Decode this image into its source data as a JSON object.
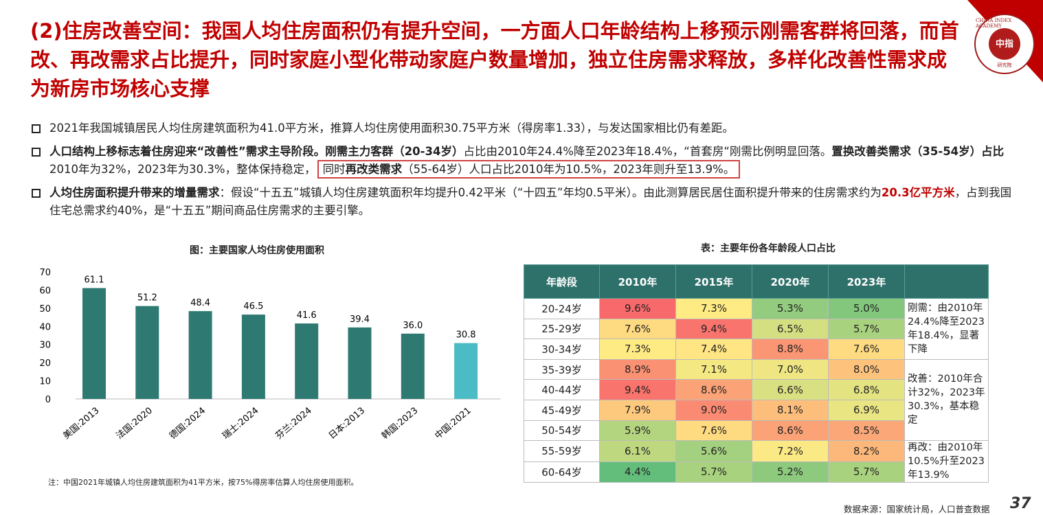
{
  "logo": {
    "ring_text": "CHINA INDEX ACADEMY",
    "center_text": "中指",
    "sub_text": "研究院"
  },
  "title": "(2)住房改善空间：我国人均住房面积仍有提升空间，一方面人口年龄结构上移预示刚需客群将回落，而首改、再改需求占比提升，同时家庭小型化带动家庭户数量增加，独立住房需求释放，多样化改善性需求成为新房市场核心支撑",
  "bullets": [
    {
      "text": "2021年我国城镇居民人均住房建筑面积为41.0平方米，推算人均住房使用面积30.75平方米（得房率1.33），与发达国家相比仍有差距。"
    },
    {
      "b1": "人口结构上移标志着住房迎来“改善性”需求主导阶段。刚需主力客群（20-34岁）",
      "t1": "占比由2010年24.4%降至2023年18.4%，“首套房“刚需比例明显回落。",
      "b2": "置换改善类需求（35-54岁）占比",
      "t2": "2010年为32%，2023年为30.3%，整体保持稳定，",
      "h1": "同时",
      "hb": "再改类需求",
      "h2": "（55-64岁）人口占比2010年为10.5%，2023年则升至13.9%。"
    },
    {
      "b1": "人均住房面积提升带来的增量需求",
      "t1": "：假设“十五五”城镇人均住房建筑面积年均提升0.42平米（“十四五”年均0.5平米）。由此测算居民居住面积提升带来的住房需求约为",
      "r": "20.3亿平方米",
      "t2": "，占到我国住宅总需求约40%，是“十五五”期间商品住房需求的主要引擎。"
    }
  ],
  "chart_data": {
    "type": "bar",
    "title": "图：主要国家人均住房使用面积",
    "categories": [
      "美国:2013",
      "法国:2020",
      "德国:2024",
      "瑞士:2024",
      "芬兰:2024",
      "日本:2013",
      "韩国:2023",
      "中国:2021"
    ],
    "values": [
      61.1,
      51.2,
      48.4,
      46.5,
      41.6,
      39.4,
      36.0,
      30.8
    ],
    "ylim": [
      0,
      70
    ],
    "yticks": [
      0,
      10,
      20,
      30,
      40,
      50,
      60,
      70
    ],
    "colors": {
      "default": "#2e7a72",
      "highlight": "#4bbcc6"
    },
    "highlight_index": 7,
    "grid": false
  },
  "table": {
    "title": "表：主要年份各年龄段人口占比",
    "headers": [
      "年龄段",
      "2010年",
      "2015年",
      "2020年",
      "2023年",
      ""
    ],
    "rows": [
      {
        "age": "20-24岁",
        "v": [
          "9.6%",
          "7.3%",
          "5.3%",
          "5.0%"
        ]
      },
      {
        "age": "25-29岁",
        "v": [
          "7.6%",
          "9.4%",
          "6.5%",
          "5.7%"
        ]
      },
      {
        "age": "30-34岁",
        "v": [
          "7.3%",
          "7.4%",
          "8.8%",
          "7.6%"
        ]
      },
      {
        "age": "35-39岁",
        "v": [
          "8.9%",
          "7.1%",
          "7.0%",
          "8.0%"
        ]
      },
      {
        "age": "40-44岁",
        "v": [
          "9.4%",
          "8.6%",
          "6.6%",
          "6.8%"
        ]
      },
      {
        "age": "45-49岁",
        "v": [
          "7.9%",
          "9.0%",
          "8.1%",
          "6.9%"
        ]
      },
      {
        "age": "50-54岁",
        "v": [
          "5.9%",
          "7.6%",
          "8.6%",
          "8.5%"
        ]
      },
      {
        "age": "55-59岁",
        "v": [
          "6.1%",
          "5.6%",
          "7.2%",
          "8.2%"
        ]
      },
      {
        "age": "60-64岁",
        "v": [
          "4.4%",
          "5.7%",
          "5.2%",
          "5.7%"
        ]
      }
    ],
    "notes": [
      "刚需：由2010年24.4%降至2023年18.4%，显著下降",
      "改善：2010年合计32%，2023年30.3%，基本稳定",
      "再改：由2010年10.5%升至2023年13.9%"
    ],
    "scale_colors": {
      "low": "#63be7b",
      "mid": "#ffeb84",
      "high": "#f8696b"
    }
  },
  "footnote": "注：中国2021年城镇人均住房建筑面积为41平方米，按75%得房率估算人均住房使用面积。",
  "source": "数据来源：国家统计局，人口普查数据",
  "page_number": "37"
}
